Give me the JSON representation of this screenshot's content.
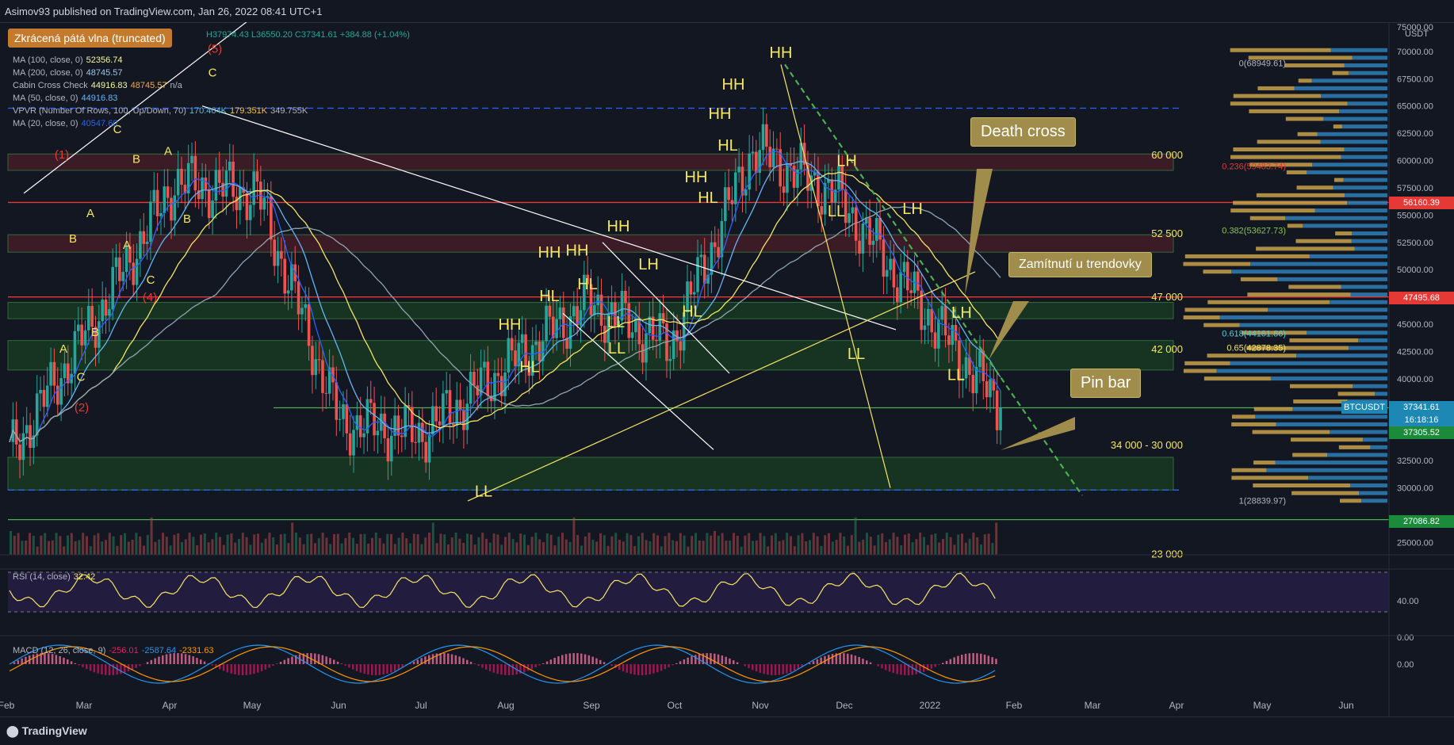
{
  "header": {
    "published": "Asimov93 published on TradingView.com, Jan 26, 2022 08:41 UTC+1"
  },
  "footer": {
    "brand": "TradingView"
  },
  "legend": {
    "ohlc": "H37974.43  L36550.20  C37341.61  +384.88 (+1.04%)",
    "ma100": {
      "label": "MA (100, close, 0)",
      "value": "52356.74"
    },
    "ma200": {
      "label": "MA (200, close, 0)",
      "value": "48745.57"
    },
    "cabin": {
      "label": "Cabin Cross Check",
      "v1": "44916.83",
      "v2": "48745.57",
      "v3": "n/a"
    },
    "ma50": {
      "label": "MA (50, close, 0)",
      "value": "44916.83"
    },
    "vpvr": {
      "label": "VPVR (Number Of Rows, 100, Up/Down, 70)",
      "v1": "170.404K",
      "v2": "179.351K",
      "v3": "349.755K"
    },
    "ma20": {
      "label": "MA (20, close, 0)",
      "value": "40547.60"
    },
    "rsi": {
      "label": "RSI (14, close)",
      "value": "32.42"
    },
    "macd": {
      "label": "MACD (12, 26, close, 9)",
      "v1": "-256.01",
      "v2": "-2587.64",
      "v3": "-2331.63"
    }
  },
  "annotations": {
    "truncated": "Zkrácená pátá vlna (truncated)",
    "death_cross": "Death cross",
    "rejection": "Zamítnutí u trendovky",
    "pin_bar": "Pin bar"
  },
  "zones": {
    "z60": "60 000",
    "z52": "52 500",
    "z47": "47 000",
    "z42": "42 000",
    "z34": "34 000 - 30 000",
    "z23": "23 000"
  },
  "fib": {
    "f0": "0(68949.61)",
    "f236": "0.236(59483.74)",
    "f382": "0.382(53627.73)",
    "f618": "0.618(44161.86)",
    "f65": "0.65(42878.35)",
    "f1": "1(28839.97)"
  },
  "price_axis": {
    "unit": "USDT",
    "ticks": [
      "70000.00",
      "67500.00",
      "65000.00",
      "62500.00",
      "60000.00",
      "57500.00",
      "55000.00",
      "52500.00",
      "50000.00",
      "47500.00",
      "45000.00",
      "42500.00",
      "40000.00",
      "37500.00",
      "32500.00",
      "30000.00",
      "25000.00"
    ],
    "top_tick": "75000.00",
    "rsi_ticks": [
      "40.00",
      "0.00"
    ],
    "macd_tick": "0.00"
  },
  "price_tags": {
    "p56160": "56160.39",
    "p47495": "47495.68",
    "btc_label": "BTCUSDT",
    "btc_price": "37341.61",
    "countdown": "16:18:16",
    "p37305": "37305.52",
    "p27086": "27086.82"
  },
  "time_axis": [
    "Feb",
    "Mar",
    "Apr",
    "May",
    "Jun",
    "Jul",
    "Aug",
    "Sep",
    "Oct",
    "Nov",
    "Dec",
    "2022",
    "Feb",
    "Mar",
    "Apr",
    "May",
    "Jun"
  ],
  "colors": {
    "up": "#26a69a",
    "down": "#ef5350",
    "label_yellow": "#f5e663",
    "wave_red": "#e53935",
    "zone_green": "#1b5e20",
    "zone_red": "#5d1f2a"
  },
  "chart_data": {
    "type": "candlestick",
    "x": [
      "Feb 2021",
      "Mar",
      "Apr",
      "May",
      "Jun",
      "Jul",
      "Aug",
      "Sep",
      "Oct",
      "Nov",
      "Dec",
      "2022",
      "Jan 26"
    ],
    "close": [
      33000,
      45000,
      58000,
      57000,
      36000,
      35000,
      41000,
      47000,
      43000,
      61000,
      57000,
      47000,
      37341.61
    ],
    "swing_labels": [
      {
        "text": "HH",
        "price": 69000
      },
      {
        "text": "HH",
        "price": 66000
      },
      {
        "text": "HH",
        "price": 61000
      },
      {
        "text": "HL",
        "price": 58000
      },
      {
        "text": "HH",
        "price": 55000
      },
      {
        "text": "HL",
        "price": 53000
      },
      {
        "text": "HH",
        "price": 52000
      },
      {
        "text": "HH",
        "price": 49500
      },
      {
        "text": "HH",
        "price": 49500
      },
      {
        "text": "LH",
        "price": 48000
      },
      {
        "text": "HL",
        "price": 46500
      },
      {
        "text": "HL",
        "price": 45500
      },
      {
        "text": "HL",
        "price": 45500
      },
      {
        "text": "LL",
        "price": 42500
      },
      {
        "text": "HH",
        "price": 42500
      },
      {
        "text": "LL",
        "price": 39500
      },
      {
        "text": "HL",
        "price": 37000
      },
      {
        "text": "LL",
        "price": 29500
      },
      {
        "text": "LH",
        "price": 59000
      },
      {
        "text": "LL",
        "price": 55000
      },
      {
        "text": "LH",
        "price": 55000
      },
      {
        "text": "LH",
        "price": 45000
      },
      {
        "text": "LL",
        "price": 42000
      },
      {
        "text": "LL",
        "price": 40000
      }
    ],
    "levels": [
      60000,
      52500,
      47000,
      42000,
      34000,
      30000,
      23000
    ],
    "ylim": [
      22000,
      75000
    ]
  }
}
